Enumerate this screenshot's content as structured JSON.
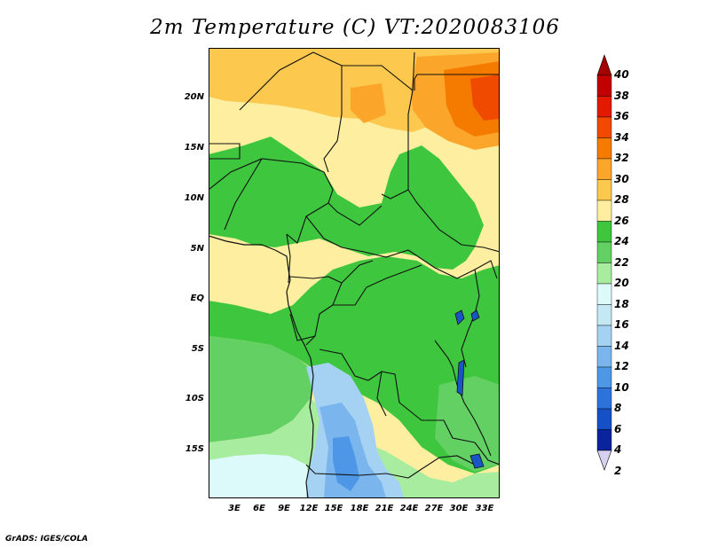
{
  "title": "2m Temperature (C) VT:2020083106",
  "credit": "GrADS: IGES/COLA",
  "lat_labels": [
    "20N",
    "15N",
    "10N",
    "5N",
    "EQ",
    "5S",
    "10S",
    "15S"
  ],
  "lon_labels": [
    "3E",
    "6E",
    "9E",
    "12E",
    "15E",
    "18E",
    "21E",
    "24E",
    "27E",
    "30E",
    "33E"
  ],
  "colorbar": {
    "labels": [
      "40",
      "38",
      "36",
      "34",
      "32",
      "30",
      "28",
      "26",
      "24",
      "22",
      "20",
      "18",
      "16",
      "14",
      "12",
      "10",
      "8",
      "6",
      "4",
      "2"
    ],
    "colors": [
      "#a50000",
      "#c20000",
      "#e11a00",
      "#f04a00",
      "#f57b00",
      "#fba62a",
      "#fcc84e",
      "#fdeea0",
      "#3fc63f",
      "#63d063",
      "#a8eca0",
      "#ddfafa",
      "#c5e8f5",
      "#a5d2f2",
      "#7ab6ed",
      "#4d97e6",
      "#2c74dc",
      "#1550c6",
      "#0a249e",
      "#d8d0f0"
    ],
    "min_arrow_color": "#d8d0f0",
    "max_arrow_color": "#a50000"
  },
  "field_colors": {
    "t24_26": "#fdeea0",
    "t26_28": "#fcc84e",
    "t28_30": "#fba62a",
    "t30_32": "#f57b00",
    "t32_34": "#f04a00",
    "t22_24": "#3fc63f",
    "t20_22": "#63d063",
    "t18_20": "#a8eca0",
    "t16_18": "#ddfafa",
    "t14_16": "#a5d2f2",
    "t12_14": "#7ab6ed",
    "t10_12": "#4d97e6"
  }
}
